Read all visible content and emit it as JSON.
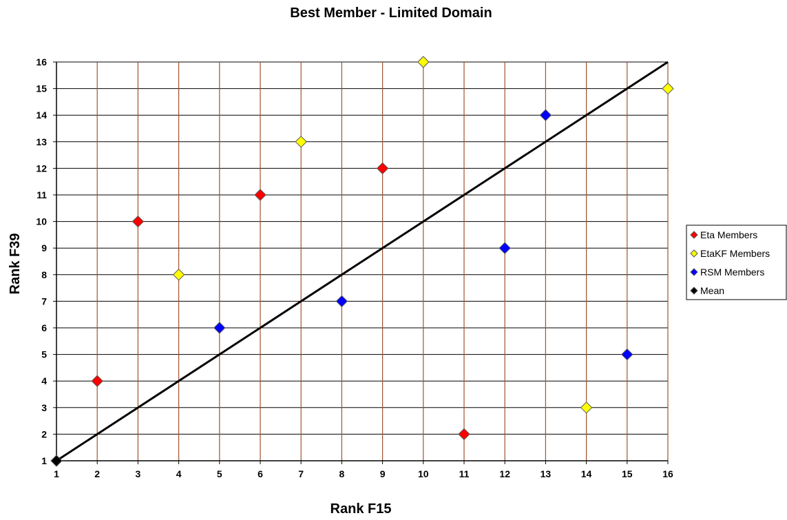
{
  "chart_data": {
    "type": "scatter",
    "title": "Best Member - Limited Domain",
    "xlabel": "Rank F15",
    "ylabel": "Rank F39",
    "xlim": [
      1,
      16
    ],
    "ylim": [
      1,
      16
    ],
    "x_ticks": [
      1,
      2,
      3,
      4,
      5,
      6,
      7,
      8,
      9,
      10,
      11,
      12,
      13,
      14,
      15,
      16
    ],
    "y_ticks": [
      1,
      2,
      3,
      4,
      5,
      6,
      7,
      8,
      9,
      10,
      11,
      12,
      13,
      14,
      15,
      16
    ],
    "grid": true,
    "legend_position": "right",
    "series": [
      {
        "name": "Eta Members",
        "color": "#ff0000",
        "marker": "diamond",
        "points": [
          [
            2,
            4
          ],
          [
            3,
            10
          ],
          [
            6,
            11
          ],
          [
            9,
            12
          ],
          [
            11,
            2
          ]
        ]
      },
      {
        "name": "EtaKF Members",
        "color": "#ffff00",
        "marker": "diamond",
        "points": [
          [
            4,
            8
          ],
          [
            7,
            13
          ],
          [
            10,
            16
          ],
          [
            14,
            3
          ],
          [
            16,
            15
          ]
        ]
      },
      {
        "name": "RSM Members",
        "color": "#0000ff",
        "marker": "diamond",
        "points": [
          [
            5,
            6
          ],
          [
            8,
            7
          ],
          [
            12,
            9
          ],
          [
            13,
            14
          ],
          [
            15,
            5
          ]
        ]
      },
      {
        "name": "Mean",
        "color": "#000000",
        "marker": "diamond",
        "points": [
          [
            1,
            1
          ]
        ]
      }
    ],
    "reference_line": {
      "from": [
        1,
        1
      ],
      "to": [
        16,
        16
      ],
      "color": "#000000"
    }
  },
  "colors": {
    "vertical_grid": "#a0522d",
    "horizontal_grid": "#000000",
    "marker_outline": "#555555"
  }
}
